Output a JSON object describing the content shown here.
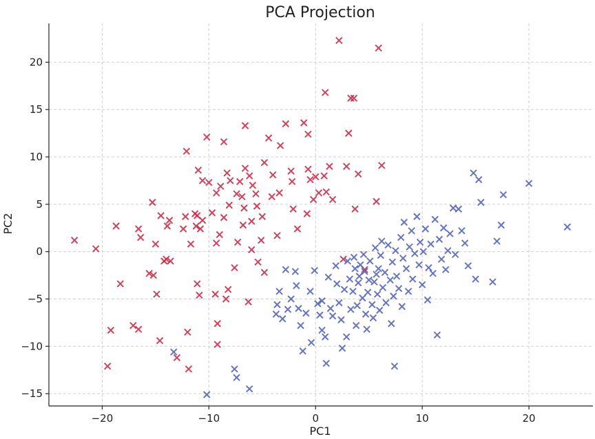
{
  "chart_data": {
    "type": "scatter",
    "title": "PCA Projection",
    "xlabel": "PC1",
    "ylabel": "PC2",
    "xlim": [
      -25,
      26
    ],
    "ylim": [
      -16.3,
      24.1
    ],
    "xticks": [
      -20,
      -10,
      0,
      10,
      20
    ],
    "yticks": [
      -15,
      -10,
      -5,
      0,
      5,
      10,
      15,
      20
    ],
    "grid": true,
    "marker": "x",
    "series": [
      {
        "color": "#c8203f",
        "points": [
          [
            -22.6,
            1.2
          ],
          [
            -20.6,
            0.3
          ],
          [
            -19.5,
            -12.1
          ],
          [
            -19.2,
            -8.3
          ],
          [
            -18.7,
            2.7
          ],
          [
            -18.3,
            -3.4
          ],
          [
            -17.1,
            -7.8
          ],
          [
            -16.6,
            -8.2
          ],
          [
            -16.6,
            2.4
          ],
          [
            -16.4,
            1.5
          ],
          [
            -15.6,
            -2.3
          ],
          [
            -15.3,
            5.2
          ],
          [
            -15.2,
            -2.5
          ],
          [
            -15.0,
            0.8
          ],
          [
            -14.9,
            -4.5
          ],
          [
            -14.6,
            -9.4
          ],
          [
            -14.5,
            3.8
          ],
          [
            -14.2,
            -1.0
          ],
          [
            -14.0,
            -0.8
          ],
          [
            -13.9,
            2.7
          ],
          [
            -13.7,
            3.3
          ],
          [
            -13.6,
            -1.0
          ],
          [
            -13.0,
            -11.2
          ],
          [
            -12.4,
            2.4
          ],
          [
            -12.2,
            3.7
          ],
          [
            -12.1,
            10.6
          ],
          [
            -12.0,
            -8.5
          ],
          [
            -11.9,
            -12.4
          ],
          [
            -11.7,
            0.8
          ],
          [
            -11.3,
            4.0
          ],
          [
            -11.2,
            2.7
          ],
          [
            -11.1,
            -3.4
          ],
          [
            -11.1,
            3.8
          ],
          [
            -11.0,
            8.6
          ],
          [
            -10.9,
            -4.6
          ],
          [
            -10.8,
            2.4
          ],
          [
            -10.6,
            7.5
          ],
          [
            -10.6,
            3.3
          ],
          [
            -10.2,
            12.1
          ],
          [
            -10.0,
            7.3
          ],
          [
            -9.7,
            4.1
          ],
          [
            -9.4,
            -4.5
          ],
          [
            -9.3,
            0.9
          ],
          [
            -9.3,
            6.2
          ],
          [
            -9.2,
            -7.6
          ],
          [
            -9.2,
            -9.8
          ],
          [
            -9.0,
            1.8
          ],
          [
            -8.9,
            6.9
          ],
          [
            -8.6,
            11.6
          ],
          [
            -8.6,
            3.6
          ],
          [
            -8.4,
            -5.0
          ],
          [
            -8.3,
            8.3
          ],
          [
            -8.2,
            -4.0
          ],
          [
            -8.1,
            4.9
          ],
          [
            -8.0,
            7.5
          ],
          [
            -7.6,
            -1.7
          ],
          [
            -7.4,
            6.1
          ],
          [
            -7.3,
            1.0
          ],
          [
            -7.1,
            7.4
          ],
          [
            -6.9,
            5.8
          ],
          [
            -6.8,
            2.8
          ],
          [
            -6.7,
            4.6
          ],
          [
            -6.6,
            8.8
          ],
          [
            -6.6,
            13.3
          ],
          [
            -6.3,
            -5.3
          ],
          [
            -6.2,
            8.0
          ],
          [
            -6.0,
            0.2
          ],
          [
            -6.0,
            3.2
          ],
          [
            -5.9,
            7.0
          ],
          [
            -5.6,
            6.1
          ],
          [
            -5.5,
            4.8
          ],
          [
            -5.4,
            -1.1
          ],
          [
            -5.1,
            1.2
          ],
          [
            -5.0,
            3.7
          ],
          [
            -4.8,
            9.4
          ],
          [
            -4.8,
            -2.2
          ],
          [
            -4.4,
            12.0
          ],
          [
            -4.1,
            5.8
          ],
          [
            -4.0,
            8.1
          ],
          [
            -3.6,
            1.7
          ],
          [
            -3.4,
            6.2
          ],
          [
            -3.3,
            11.2
          ],
          [
            -2.8,
            13.5
          ],
          [
            -2.3,
            8.5
          ],
          [
            -2.2,
            7.4
          ],
          [
            -2.1,
            4.5
          ],
          [
            -1.7,
            2.4
          ],
          [
            -1.1,
            13.6
          ],
          [
            -0.8,
            4.0
          ],
          [
            -0.7,
            12.4
          ],
          [
            -0.7,
            8.7
          ],
          [
            -0.5,
            7.6
          ],
          [
            -0.2,
            5.5
          ],
          [
            0.0,
            7.9
          ],
          [
            0.3,
            6.2
          ],
          [
            0.8,
            8.0
          ],
          [
            0.9,
            16.8
          ],
          [
            1.0,
            6.3
          ],
          [
            1.3,
            9.0
          ],
          [
            1.6,
            5.5
          ],
          [
            2.2,
            22.3
          ],
          [
            2.6,
            -0.8
          ],
          [
            2.9,
            9.0
          ],
          [
            3.1,
            12.5
          ],
          [
            3.3,
            16.2
          ],
          [
            3.6,
            16.2
          ],
          [
            3.7,
            4.5
          ],
          [
            4.0,
            8.2
          ],
          [
            4.6,
            -1.9
          ],
          [
            5.7,
            5.3
          ],
          [
            5.9,
            21.5
          ],
          [
            6.2,
            9.1
          ]
        ]
      },
      {
        "color": "#4a5cb6",
        "points": [
          [
            -13.3,
            -10.6
          ],
          [
            -10.2,
            -15.1
          ],
          [
            -7.6,
            -12.4
          ],
          [
            -7.4,
            -13.3
          ],
          [
            -6.2,
            -14.5
          ],
          [
            -3.7,
            -6.6
          ],
          [
            -3.6,
            -5.6
          ],
          [
            -3.4,
            -4.2
          ],
          [
            -3.1,
            -7.1
          ],
          [
            -2.8,
            -1.9
          ],
          [
            -2.6,
            -6.1
          ],
          [
            -2.3,
            -5.0
          ],
          [
            -1.9,
            -2.1
          ],
          [
            -1.8,
            -3.6
          ],
          [
            -1.6,
            -6.0
          ],
          [
            -1.4,
            -7.8
          ],
          [
            -1.2,
            -10.5
          ],
          [
            -0.9,
            -6.5
          ],
          [
            -0.5,
            -4.2
          ],
          [
            -0.4,
            -9.6
          ],
          [
            -0.1,
            -2.0
          ],
          [
            0.2,
            -5.5
          ],
          [
            0.4,
            -6.7
          ],
          [
            0.6,
            -5.2
          ],
          [
            0.6,
            -8.3
          ],
          [
            0.9,
            -9.0
          ],
          [
            1.0,
            -11.8
          ],
          [
            1.2,
            -2.7
          ],
          [
            1.4,
            -6.0
          ],
          [
            1.6,
            -6.8
          ],
          [
            1.9,
            -1.5
          ],
          [
            2.0,
            -3.4
          ],
          [
            2.2,
            -5.4
          ],
          [
            2.4,
            -7.2
          ],
          [
            2.5,
            -10.2
          ],
          [
            2.7,
            -4.0
          ],
          [
            2.9,
            -9.0
          ],
          [
            3.0,
            -1.0
          ],
          [
            3.2,
            -2.9
          ],
          [
            3.3,
            -6.1
          ],
          [
            3.5,
            -4.2
          ],
          [
            3.6,
            -0.6
          ],
          [
            3.7,
            -1.8
          ],
          [
            3.8,
            -7.8
          ],
          [
            3.9,
            -5.7
          ],
          [
            4.0,
            -3.3
          ],
          [
            4.1,
            -2.6
          ],
          [
            4.2,
            -1.4
          ],
          [
            4.4,
            -4.9
          ],
          [
            4.5,
            -0.3
          ],
          [
            4.6,
            -2.1
          ],
          [
            4.7,
            -6.6
          ],
          [
            4.8,
            -8.2
          ],
          [
            4.9,
            -4.3
          ],
          [
            5.0,
            -3.0
          ],
          [
            5.1,
            -1.0
          ],
          [
            5.3,
            -5.6
          ],
          [
            5.4,
            -7.0
          ],
          [
            5.5,
            -3.2
          ],
          [
            5.6,
            0.4
          ],
          [
            5.7,
            -2.4
          ],
          [
            5.8,
            -4.5
          ],
          [
            5.9,
            -1.8
          ],
          [
            6.0,
            -6.2
          ],
          [
            6.1,
            -0.4
          ],
          [
            6.2,
            1.1
          ],
          [
            6.3,
            -3.8
          ],
          [
            6.5,
            -2.2
          ],
          [
            6.6,
            -5.4
          ],
          [
            6.8,
            0.7
          ],
          [
            7.0,
            -3.0
          ],
          [
            7.1,
            -7.6
          ],
          [
            7.2,
            -1.1
          ],
          [
            7.3,
            -4.7
          ],
          [
            7.4,
            -12.1
          ],
          [
            7.5,
            0.1
          ],
          [
            7.6,
            -2.6
          ],
          [
            7.8,
            -3.9
          ],
          [
            8.0,
            1.5
          ],
          [
            8.1,
            -5.8
          ],
          [
            8.2,
            -0.7
          ],
          [
            8.3,
            3.1
          ],
          [
            8.5,
            -1.8
          ],
          [
            8.7,
            -4.2
          ],
          [
            8.8,
            0.5
          ],
          [
            9.0,
            2.2
          ],
          [
            9.1,
            -2.9
          ],
          [
            9.3,
            -0.2
          ],
          [
            9.5,
            3.7
          ],
          [
            9.7,
            -1.4
          ],
          [
            9.8,
            1.0
          ],
          [
            10.0,
            -3.5
          ],
          [
            10.1,
            0.0
          ],
          [
            10.3,
            2.4
          ],
          [
            10.5,
            -5.1
          ],
          [
            10.6,
            -1.7
          ],
          [
            10.8,
            0.8
          ],
          [
            11.0,
            -2.3
          ],
          [
            11.2,
            3.4
          ],
          [
            11.4,
            -8.8
          ],
          [
            11.6,
            1.3
          ],
          [
            11.8,
            -0.8
          ],
          [
            12.0,
            2.5
          ],
          [
            12.2,
            -1.9
          ],
          [
            12.4,
            0.1
          ],
          [
            12.6,
            1.9
          ],
          [
            12.9,
            4.6
          ],
          [
            13.1,
            -0.3
          ],
          [
            13.4,
            4.5
          ],
          [
            13.7,
            2.2
          ],
          [
            14.0,
            0.9
          ],
          [
            14.3,
            -1.5
          ],
          [
            14.8,
            8.3
          ],
          [
            15.0,
            -2.9
          ],
          [
            15.3,
            7.6
          ],
          [
            15.5,
            5.2
          ],
          [
            16.6,
            -3.2
          ],
          [
            17.0,
            1.1
          ],
          [
            17.4,
            2.8
          ],
          [
            17.6,
            6.0
          ],
          [
            20.0,
            7.2
          ],
          [
            23.6,
            2.6
          ]
        ]
      }
    ]
  }
}
